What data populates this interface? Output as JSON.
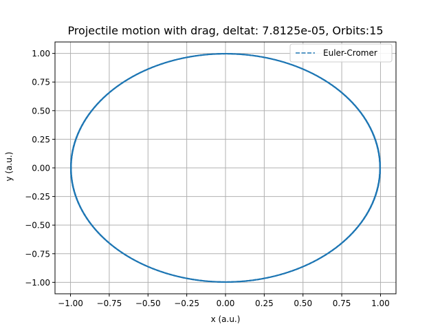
{
  "chart_data": {
    "type": "line",
    "title": "Projectile motion with drag, deltat: 7.8125e-05, Orbits:15",
    "xlabel": "x (a.u.)",
    "ylabel": "y (a.u.)",
    "xlim": [
      -1.1,
      1.1
    ],
    "ylim": [
      -1.1,
      1.1
    ],
    "xticks": [
      -1.0,
      -0.75,
      -0.5,
      -0.25,
      0.0,
      0.25,
      0.5,
      0.75,
      1.0
    ],
    "yticks": [
      -1.0,
      -0.75,
      -0.5,
      -0.25,
      0.0,
      0.25,
      0.5,
      0.75,
      1.0
    ],
    "xtick_labels": [
      "−1.00",
      "−0.75",
      "−0.50",
      "−0.25",
      "0.00",
      "0.25",
      "0.50",
      "0.75",
      "1.00"
    ],
    "ytick_labels": [
      "−1.00",
      "−0.75",
      "−0.50",
      "−0.25",
      "0.00",
      "0.25",
      "0.50",
      "0.75",
      "1.00"
    ],
    "grid": true,
    "legend_position": "top-right",
    "series": [
      {
        "name": "Euler-Cromer",
        "color": "#1f77b4",
        "linestyle": "dashed",
        "shape": "circle",
        "center": [
          0.0,
          0.0
        ],
        "radius": 1.0,
        "orbits": 15
      }
    ]
  }
}
